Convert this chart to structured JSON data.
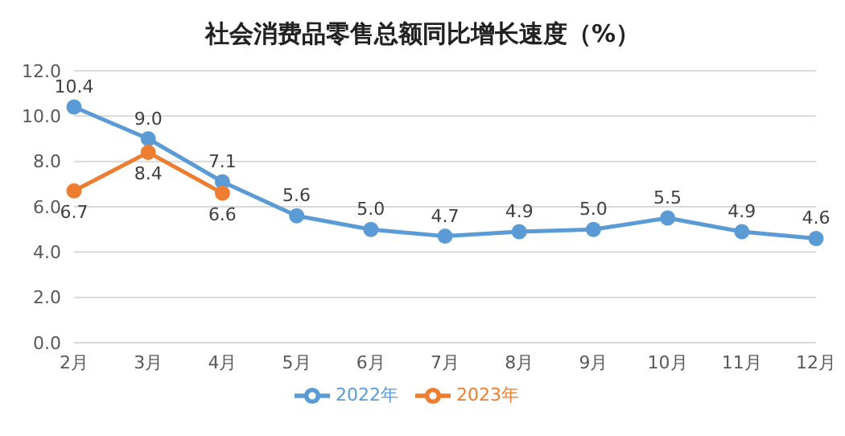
{
  "chart_data": {
    "type": "line",
    "title": "社会消费品零售总额同比增长速度（%）",
    "categories": [
      "2月",
      "3月",
      "4月",
      "5月",
      "6月",
      "7月",
      "8月",
      "9月",
      "10月",
      "11月",
      "12月"
    ],
    "series": [
      {
        "name": "2022年",
        "color": "#5b9bd5",
        "values": [
          10.4,
          9.0,
          7.1,
          5.6,
          5.0,
          4.7,
          4.9,
          5.0,
          5.5,
          4.9,
          4.6
        ],
        "value_labels": [
          "10.4",
          "9.0",
          "7.1",
          "5.6",
          "5.0",
          "4.7",
          "4.9",
          "5.0",
          "5.5",
          "4.9",
          "4.6"
        ]
      },
      {
        "name": "2023年",
        "color": "#ed7d31",
        "values": [
          6.7,
          8.4,
          6.6,
          null,
          null,
          null,
          null,
          null,
          null,
          null,
          null
        ],
        "value_labels": [
          "6.7",
          "8.4",
          "6.6",
          null,
          null,
          null,
          null,
          null,
          null,
          null,
          null
        ]
      }
    ],
    "ylim": [
      0,
      12
    ],
    "yticks": [
      {
        "value": 0,
        "label": "0.0"
      },
      {
        "value": 2,
        "label": "2.0"
      },
      {
        "value": 4,
        "label": "4.0"
      },
      {
        "value": 6,
        "label": "6.0"
      },
      {
        "value": 8,
        "label": "8.0"
      },
      {
        "value": 10,
        "label": "10.0"
      },
      {
        "value": 12,
        "label": "12.0"
      }
    ],
    "grid": "y",
    "legend": "bottom",
    "marker": "circle",
    "line_style": "solid"
  }
}
